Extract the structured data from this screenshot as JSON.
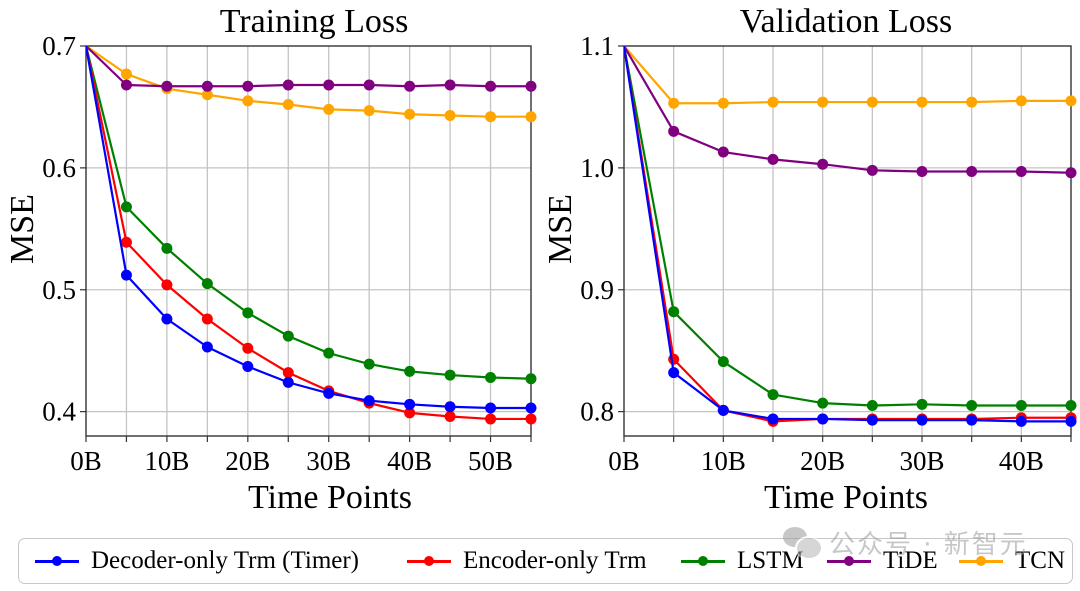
{
  "chart_data": [
    {
      "type": "line",
      "title": "Training Loss",
      "xlabel": "Time Points",
      "ylabel": "MSE",
      "x": [
        0,
        5,
        10,
        15,
        20,
        25,
        30,
        35,
        40,
        45,
        50,
        55
      ],
      "x_unit": "B",
      "xlim": [
        0,
        55
      ],
      "ylim": [
        0.38,
        0.7
      ],
      "xticks": [
        0,
        10,
        20,
        30,
        40,
        50
      ],
      "xtick_labels": [
        "0B",
        "10B",
        "20B",
        "30B",
        "40B",
        "50B"
      ],
      "xminor": [
        5,
        15,
        25,
        35,
        45,
        55
      ],
      "yticks": [
        0.4,
        0.5,
        0.6,
        0.7
      ],
      "ytick_labels": [
        "0.4",
        "0.5",
        "0.6",
        "0.7"
      ],
      "grid": true,
      "series": [
        {
          "name": "Decoder-only Trm (Timer)",
          "color": "#0000ff",
          "values": [
            0.7,
            0.512,
            0.476,
            0.453,
            0.437,
            0.424,
            0.415,
            0.409,
            0.406,
            0.404,
            0.403,
            0.403
          ]
        },
        {
          "name": "Encoder-only Trm",
          "color": "#ff0000",
          "values": [
            0.7,
            0.539,
            0.504,
            0.476,
            0.452,
            0.432,
            0.417,
            0.407,
            0.399,
            0.396,
            0.394,
            0.394
          ]
        },
        {
          "name": "LSTM",
          "color": "#008000",
          "values": [
            0.7,
            0.568,
            0.534,
            0.505,
            0.481,
            0.462,
            0.448,
            0.439,
            0.433,
            0.43,
            0.428,
            0.427
          ]
        },
        {
          "name": "TiDE",
          "color": "#800080",
          "values": [
            0.7,
            0.668,
            0.667,
            0.667,
            0.667,
            0.668,
            0.668,
            0.668,
            0.667,
            0.668,
            0.667,
            0.667
          ]
        },
        {
          "name": "TCN",
          "color": "#ffa500",
          "values": [
            0.7,
            0.677,
            0.665,
            0.66,
            0.655,
            0.652,
            0.648,
            0.647,
            0.644,
            0.643,
            0.642,
            0.642
          ]
        }
      ]
    },
    {
      "type": "line",
      "title": "Validation Loss",
      "xlabel": "Time Points",
      "ylabel": "MSE",
      "x": [
        0,
        5,
        10,
        15,
        20,
        25,
        30,
        35,
        40,
        45
      ],
      "x_unit": "B",
      "xlim": [
        0,
        45
      ],
      "ylim": [
        0.78,
        1.1
      ],
      "xticks": [
        0,
        10,
        20,
        30,
        40
      ],
      "xtick_labels": [
        "0B",
        "10B",
        "20B",
        "30B",
        "40B"
      ],
      "xminor": [
        5,
        15,
        25,
        35,
        45
      ],
      "yticks": [
        0.8,
        0.9,
        1.0,
        1.1
      ],
      "ytick_labels": [
        "0.8",
        "0.9",
        "1.0",
        "1.1"
      ],
      "grid": true,
      "series": [
        {
          "name": "Decoder-only Trm (Timer)",
          "color": "#0000ff",
          "values": [
            1.1,
            0.832,
            0.801,
            0.794,
            0.794,
            0.793,
            0.793,
            0.793,
            0.792,
            0.792
          ]
        },
        {
          "name": "Encoder-only Trm",
          "color": "#ff0000",
          "values": [
            1.1,
            0.843,
            0.801,
            0.792,
            0.794,
            0.794,
            0.794,
            0.794,
            0.795,
            0.795
          ]
        },
        {
          "name": "LSTM",
          "color": "#008000",
          "values": [
            1.1,
            0.882,
            0.841,
            0.814,
            0.807,
            0.805,
            0.806,
            0.805,
            0.805,
            0.805
          ]
        },
        {
          "name": "TiDE",
          "color": "#800080",
          "values": [
            1.1,
            1.03,
            1.013,
            1.007,
            1.003,
            0.998,
            0.997,
            0.997,
            0.997,
            0.996
          ]
        },
        {
          "name": "TCN",
          "color": "#ffa500",
          "values": [
            1.1,
            1.053,
            1.053,
            1.054,
            1.054,
            1.054,
            1.054,
            1.054,
            1.055,
            1.055
          ]
        }
      ]
    }
  ],
  "legend": {
    "placement": "bottom",
    "items": [
      {
        "label": "Decoder-only Trm (Timer)",
        "color": "#0000ff"
      },
      {
        "label": "Encoder-only Trm",
        "color": "#ff0000"
      },
      {
        "label": "LSTM",
        "color": "#008000"
      },
      {
        "label": "TiDE",
        "color": "#800080"
      },
      {
        "label": "TCN",
        "color": "#ffa500"
      }
    ]
  },
  "watermark": {
    "text": "公众号 · 新智元",
    "icon": "wechat-icon"
  }
}
